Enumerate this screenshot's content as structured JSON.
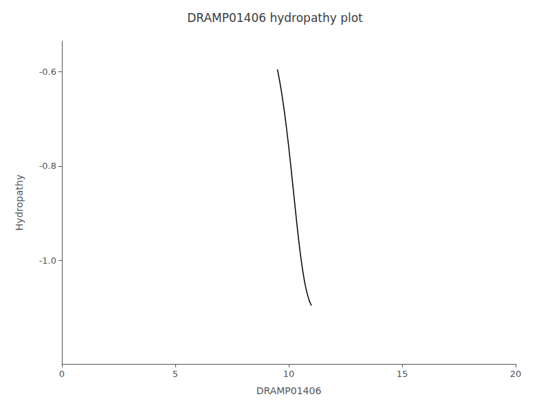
{
  "chart_data": {
    "type": "line",
    "title": "DRAMP01406 hydropathy plot",
    "xlabel": "DRAMP01406",
    "ylabel": "Hydropathy",
    "x": [
      9.5,
      9.55,
      9.6,
      9.65,
      9.7,
      9.75,
      9.8,
      9.85,
      9.9,
      9.95,
      10.0,
      10.05,
      10.1,
      10.15,
      10.2,
      10.25,
      10.3,
      10.35,
      10.4,
      10.45,
      10.5,
      10.55,
      10.6,
      10.65,
      10.7,
      10.75,
      10.8,
      10.85,
      10.9,
      10.95,
      11.0
    ],
    "values": [
      -0.595,
      -0.607,
      -0.62,
      -0.634,
      -0.649,
      -0.665,
      -0.682,
      -0.7,
      -0.719,
      -0.739,
      -0.76,
      -0.782,
      -0.804,
      -0.827,
      -0.85,
      -0.873,
      -0.896,
      -0.919,
      -0.941,
      -0.962,
      -0.982,
      -1.0,
      -1.017,
      -1.032,
      -1.046,
      -1.058,
      -1.068,
      -1.077,
      -1.085,
      -1.091,
      -1.096
    ],
    "color": "#000000",
    "xlim": [
      0,
      20
    ],
    "xticks": [
      0,
      5,
      10,
      15,
      20
    ],
    "ylim": [
      -1.22,
      -0.535
    ],
    "yticks": [
      {
        "value": -1.0,
        "label": "-1.0"
      },
      -0.8,
      -0.6
    ],
    "grid": false
  }
}
